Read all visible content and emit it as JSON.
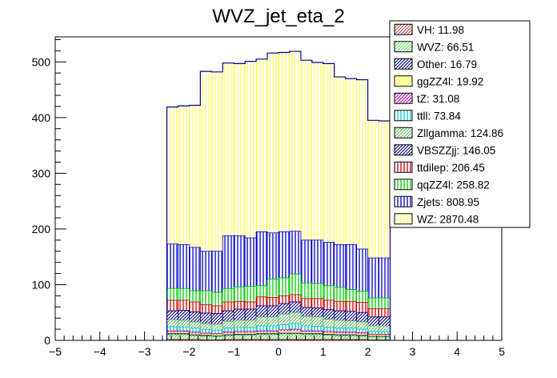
{
  "chart_data": {
    "type": "bar",
    "stacked": true,
    "title": "WVZ_jet_eta_2",
    "xlabel": "",
    "ylabel": "",
    "xlim": [
      -5,
      5
    ],
    "ylim": [
      0,
      545
    ],
    "x_ticks": [
      -5,
      -4,
      -3,
      -2,
      -1,
      0,
      1,
      2,
      3,
      4,
      5
    ],
    "y_ticks": [
      0,
      100,
      200,
      300,
      400,
      500
    ],
    "grid": false,
    "legend_position": "top-right",
    "bin_edges": [
      -2.5,
      -2.25,
      -2.0,
      -1.75,
      -1.5,
      -1.25,
      -1.0,
      -0.75,
      -0.5,
      -0.25,
      0.0,
      0.25,
      0.5,
      0.75,
      1.0,
      1.25,
      1.5,
      1.75,
      2.0,
      2.25,
      2.5
    ],
    "total": [
      419,
      421,
      422,
      483,
      482,
      498,
      497,
      501,
      505,
      516,
      517,
      519,
      503,
      499,
      497,
      473,
      470,
      468,
      395,
      394
    ],
    "series": [
      {
        "name": "WZ",
        "label": "WZ: 2870.48",
        "color": "#ffff66",
        "pattern": "vert",
        "cum_top": [
          419,
          421,
          422,
          483,
          482,
          498,
          497,
          501,
          505,
          516,
          517,
          519,
          503,
          499,
          497,
          473,
          470,
          468,
          395,
          394
        ]
      },
      {
        "name": "Zjets",
        "label": "Zjets: 808.95",
        "color": "#0000cc",
        "pattern": "vert",
        "cum_top": [
          173,
          172,
          167,
          160,
          160,
          188,
          188,
          184,
          195,
          193,
          195,
          196,
          180,
          180,
          176,
          172,
          172,
          164,
          148,
          148
        ]
      },
      {
        "name": "qqZZ4l",
        "label": "qqZZ4l: 258.82",
        "color": "#00cc00",
        "pattern": "vert",
        "cum_top": [
          93,
          93,
          89,
          89,
          86,
          93,
          96,
          97,
          98,
          110,
          112,
          119,
          103,
          102,
          98,
          95,
          91,
          88,
          76,
          76
        ]
      },
      {
        "name": "ttdilep",
        "label": "ttdilep: 206.45",
        "color": "#cc0000",
        "pattern": "vert",
        "cum_top": [
          72,
          72,
          69,
          64,
          62,
          69,
          70,
          69,
          78,
          77,
          80,
          82,
          75,
          75,
          72,
          70,
          70,
          68,
          57,
          57
        ]
      },
      {
        "name": "VBSZZjj",
        "label": "VBSZZjj: 146.05",
        "color": "#000080",
        "pattern": "diag",
        "cum_top": [
          53,
          54,
          51,
          49,
          48,
          53,
          56,
          56,
          62,
          62,
          66,
          69,
          59,
          58,
          55,
          53,
          52,
          50,
          42,
          42
        ]
      },
      {
        "name": "Zllgamma",
        "label": "Zllgamma: 124.86",
        "color": "#66bb66",
        "pattern": "diag",
        "cum_top": [
          37,
          36,
          33,
          30,
          29,
          34,
          36,
          36,
          42,
          42,
          47,
          50,
          43,
          42,
          38,
          36,
          35,
          33,
          26,
          26
        ]
      },
      {
        "name": "ttll",
        "label": "ttll: 73.84",
        "color": "#00cccc",
        "pattern": "vert",
        "cum_top": [
          24,
          24,
          22,
          19,
          18,
          22,
          23,
          23,
          26,
          26,
          28,
          30,
          26,
          25,
          23,
          22,
          22,
          20,
          16,
          16
        ]
      },
      {
        "name": "tZ",
        "label": "tZ: 31.08",
        "color": "#bb00bb",
        "pattern": "diag",
        "cum_top": [
          17,
          17,
          15,
          13,
          12,
          15,
          16,
          16,
          17,
          17,
          19,
          20,
          17,
          17,
          16,
          15,
          15,
          14,
          11,
          11
        ]
      },
      {
        "name": "ggZZ4l",
        "label": "ggZZ4l: 19.92",
        "color": "#ffff00",
        "pattern": "diag",
        "cum_top": [
          14,
          14,
          12,
          11,
          10,
          12,
          13,
          13,
          14,
          14,
          16,
          16,
          14,
          14,
          13,
          12,
          12,
          11,
          9,
          9
        ]
      },
      {
        "name": "Other",
        "label": "Other: 16.79",
        "color": "#000088",
        "pattern": "diag",
        "cum_top": [
          12,
          12,
          10,
          9,
          8,
          10,
          11,
          11,
          12,
          12,
          13,
          13,
          12,
          12,
          11,
          10,
          10,
          9,
          7,
          7
        ]
      },
      {
        "name": "WVZ",
        "label": "WVZ: 66.51",
        "color": "#66dd66",
        "pattern": "diag",
        "cum_top": [
          10,
          10,
          8,
          7,
          7,
          8,
          9,
          9,
          10,
          10,
          11,
          11,
          10,
          10,
          9,
          8,
          8,
          7,
          6,
          6
        ]
      },
      {
        "name": "VH",
        "label": "VH: 11.98",
        "color": "#bb4444",
        "pattern": "diag",
        "cum_top": [
          2,
          2,
          2,
          1,
          1,
          2,
          2,
          2,
          2,
          2,
          2,
          2,
          2,
          2,
          2,
          2,
          2,
          2,
          1,
          1
        ]
      }
    ]
  }
}
